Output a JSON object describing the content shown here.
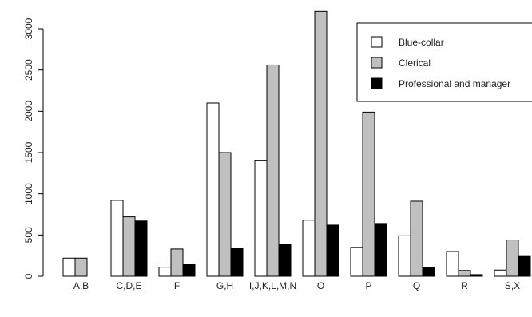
{
  "chart_data": {
    "type": "bar",
    "categories": [
      "A,B",
      "C,D,E",
      "F",
      "G,H",
      "I,J,K,L,M,N",
      "O",
      "P",
      "Q",
      "R",
      "S,X"
    ],
    "series": [
      {
        "name": "Blue-collar",
        "color": "#ffffff",
        "values": [
          220,
          920,
          110,
          2100,
          1400,
          680,
          350,
          490,
          300,
          75
        ]
      },
      {
        "name": "Clerical",
        "color": "#c0c0c0",
        "values": [
          220,
          720,
          330,
          1500,
          2560,
          3210,
          1990,
          910,
          70,
          440
        ]
      },
      {
        "name": "Professional and manager",
        "color": "#000000",
        "values": [
          0,
          670,
          150,
          340,
          390,
          620,
          640,
          110,
          20,
          250
        ]
      }
    ],
    "yticks": [
      0,
      500,
      1000,
      1500,
      2000,
      2500,
      3000
    ],
    "ylim": [
      0,
      3210
    ],
    "legend": "top-right",
    "grid": false
  }
}
